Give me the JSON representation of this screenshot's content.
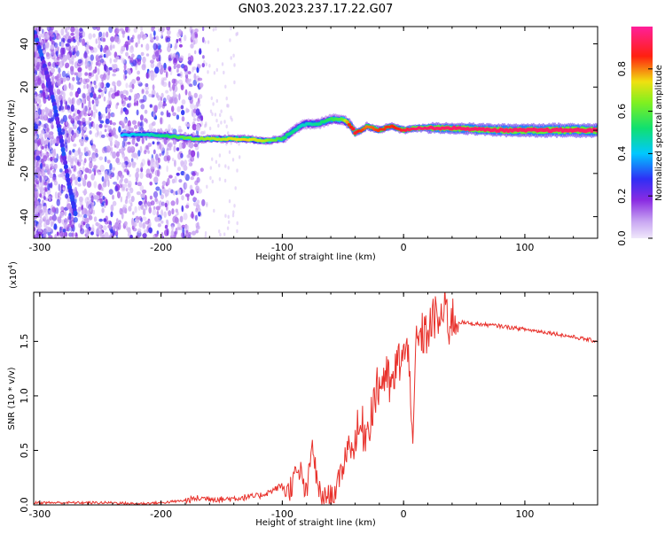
{
  "figure_title": "GN03.2023.237.17.22.G07",
  "colors": {
    "snr_line": "#e8312b",
    "frame": "#000000",
    "colormap": [
      "#e9e0f6",
      "#c6a3f4",
      "#8a2be2",
      "#2a3cf2",
      "#00e5ff",
      "#10e070",
      "#c8f020",
      "#ff1010",
      "#ff1fb0"
    ]
  },
  "chart_data": [
    {
      "type": "heatmap",
      "name": "spectrogram",
      "xlabel": "Height of straight line (km)",
      "ylabel": "Frequency (Hz)",
      "xlim": [
        -305,
        160
      ],
      "ylim": [
        -50,
        48
      ],
      "xticks": [
        -300,
        -200,
        -100,
        0,
        100
      ],
      "xtick_labels": [
        "-300",
        "-200",
        "-100",
        "0",
        "100"
      ],
      "yticks": [
        -40,
        -20,
        0,
        20,
        40
      ],
      "ytick_labels": [
        "-40",
        "-20",
        "0",
        "20",
        "40"
      ],
      "colorbar": {
        "label": "Normalized spectral amplitude",
        "range": [
          0,
          1
        ],
        "ticks": [
          0.0,
          0.2,
          0.4,
          0.6,
          0.8
        ],
        "tick_labels": [
          "0.0",
          "0.2",
          "0.4",
          "0.6",
          "0.8"
        ]
      },
      "signal_track": {
        "description_points_height_km": [
          -232,
          -210,
          -190,
          -170,
          -150,
          -130,
          -115,
          -100,
          -95,
          -90,
          -85,
          -80,
          -70,
          -60,
          -50,
          -45,
          -40,
          -35,
          -30,
          -20,
          -10,
          0,
          10,
          20,
          40,
          80,
          120,
          160
        ],
        "frequency_hz": [
          -2,
          -2,
          -3,
          -4,
          -4,
          -4,
          -5,
          -4,
          -2,
          0,
          2,
          3,
          3,
          5,
          5,
          3,
          -1,
          0,
          2,
          0,
          2,
          0,
          1,
          1,
          1,
          0,
          0,
          0
        ],
        "peak_amplitude": [
          0.4,
          0.45,
          0.55,
          0.65,
          0.7,
          0.75,
          0.7,
          0.55,
          0.5,
          0.5,
          0.45,
          0.45,
          0.5,
          0.55,
          0.6,
          0.85,
          0.9,
          0.85,
          0.8,
          0.85,
          0.85,
          0.9,
          0.95,
          0.95,
          0.95,
          0.95,
          0.95,
          0.95
        ]
      },
      "descending_trace": {
        "height_km": [
          -304,
          -295,
          -288,
          -282,
          -276,
          -270
        ],
        "frequency_hz": [
          45,
          28,
          12,
          -5,
          -25,
          -40
        ]
      }
    },
    {
      "type": "line",
      "name": "snr",
      "xlabel": "Height of straight line (km)",
      "ylabel": "SNR (10 * v/v)",
      "scale_label": "(x10",
      "scale_exponent": "4",
      "scale_close": ")",
      "xlim": [
        -305,
        160
      ],
      "ylim": [
        0,
        1.95
      ],
      "xticks": [
        -300,
        -200,
        -100,
        0,
        100
      ],
      "xtick_labels": [
        "-300",
        "-200",
        "-100",
        "0",
        "100"
      ],
      "yticks": [
        0.0,
        0.5,
        1.0,
        1.5
      ],
      "ytick_labels": [
        "0.0",
        "0.5",
        "1.0",
        "1.5"
      ],
      "series": [
        {
          "x": [
            -305,
            -280,
            -260,
            -240,
            -220,
            -200,
            -180,
            -170,
            -160,
            -150,
            -140,
            -130,
            -120,
            -110,
            -100,
            -95,
            -90,
            -85,
            -80,
            -75,
            -72,
            -70,
            -65,
            -60,
            -55,
            -50,
            -45,
            -42,
            -40,
            -35,
            -30,
            -25,
            -20,
            -15,
            -10,
            -5,
            0,
            5,
            8,
            10,
            15,
            20,
            25,
            30,
            35,
            38,
            40,
            45,
            50,
            60,
            80,
            100,
            120,
            140,
            160
          ],
          "y": [
            0.02,
            0.02,
            0.02,
            0.02,
            0.01,
            0.02,
            0.04,
            0.06,
            0.06,
            0.05,
            0.06,
            0.07,
            0.08,
            0.12,
            0.18,
            0.12,
            0.25,
            0.3,
            0.08,
            0.58,
            0.25,
            0.12,
            0.05,
            0.08,
            0.15,
            0.35,
            0.6,
            0.45,
            0.62,
            0.7,
            0.68,
            0.95,
            1.1,
            1.2,
            1.05,
            1.3,
            1.38,
            1.35,
            0.45,
            1.45,
            1.55,
            1.58,
            1.72,
            1.68,
            1.82,
            1.62,
            1.72,
            1.68,
            1.67,
            1.66,
            1.64,
            1.61,
            1.58,
            1.54,
            1.5
          ]
        }
      ]
    }
  ]
}
